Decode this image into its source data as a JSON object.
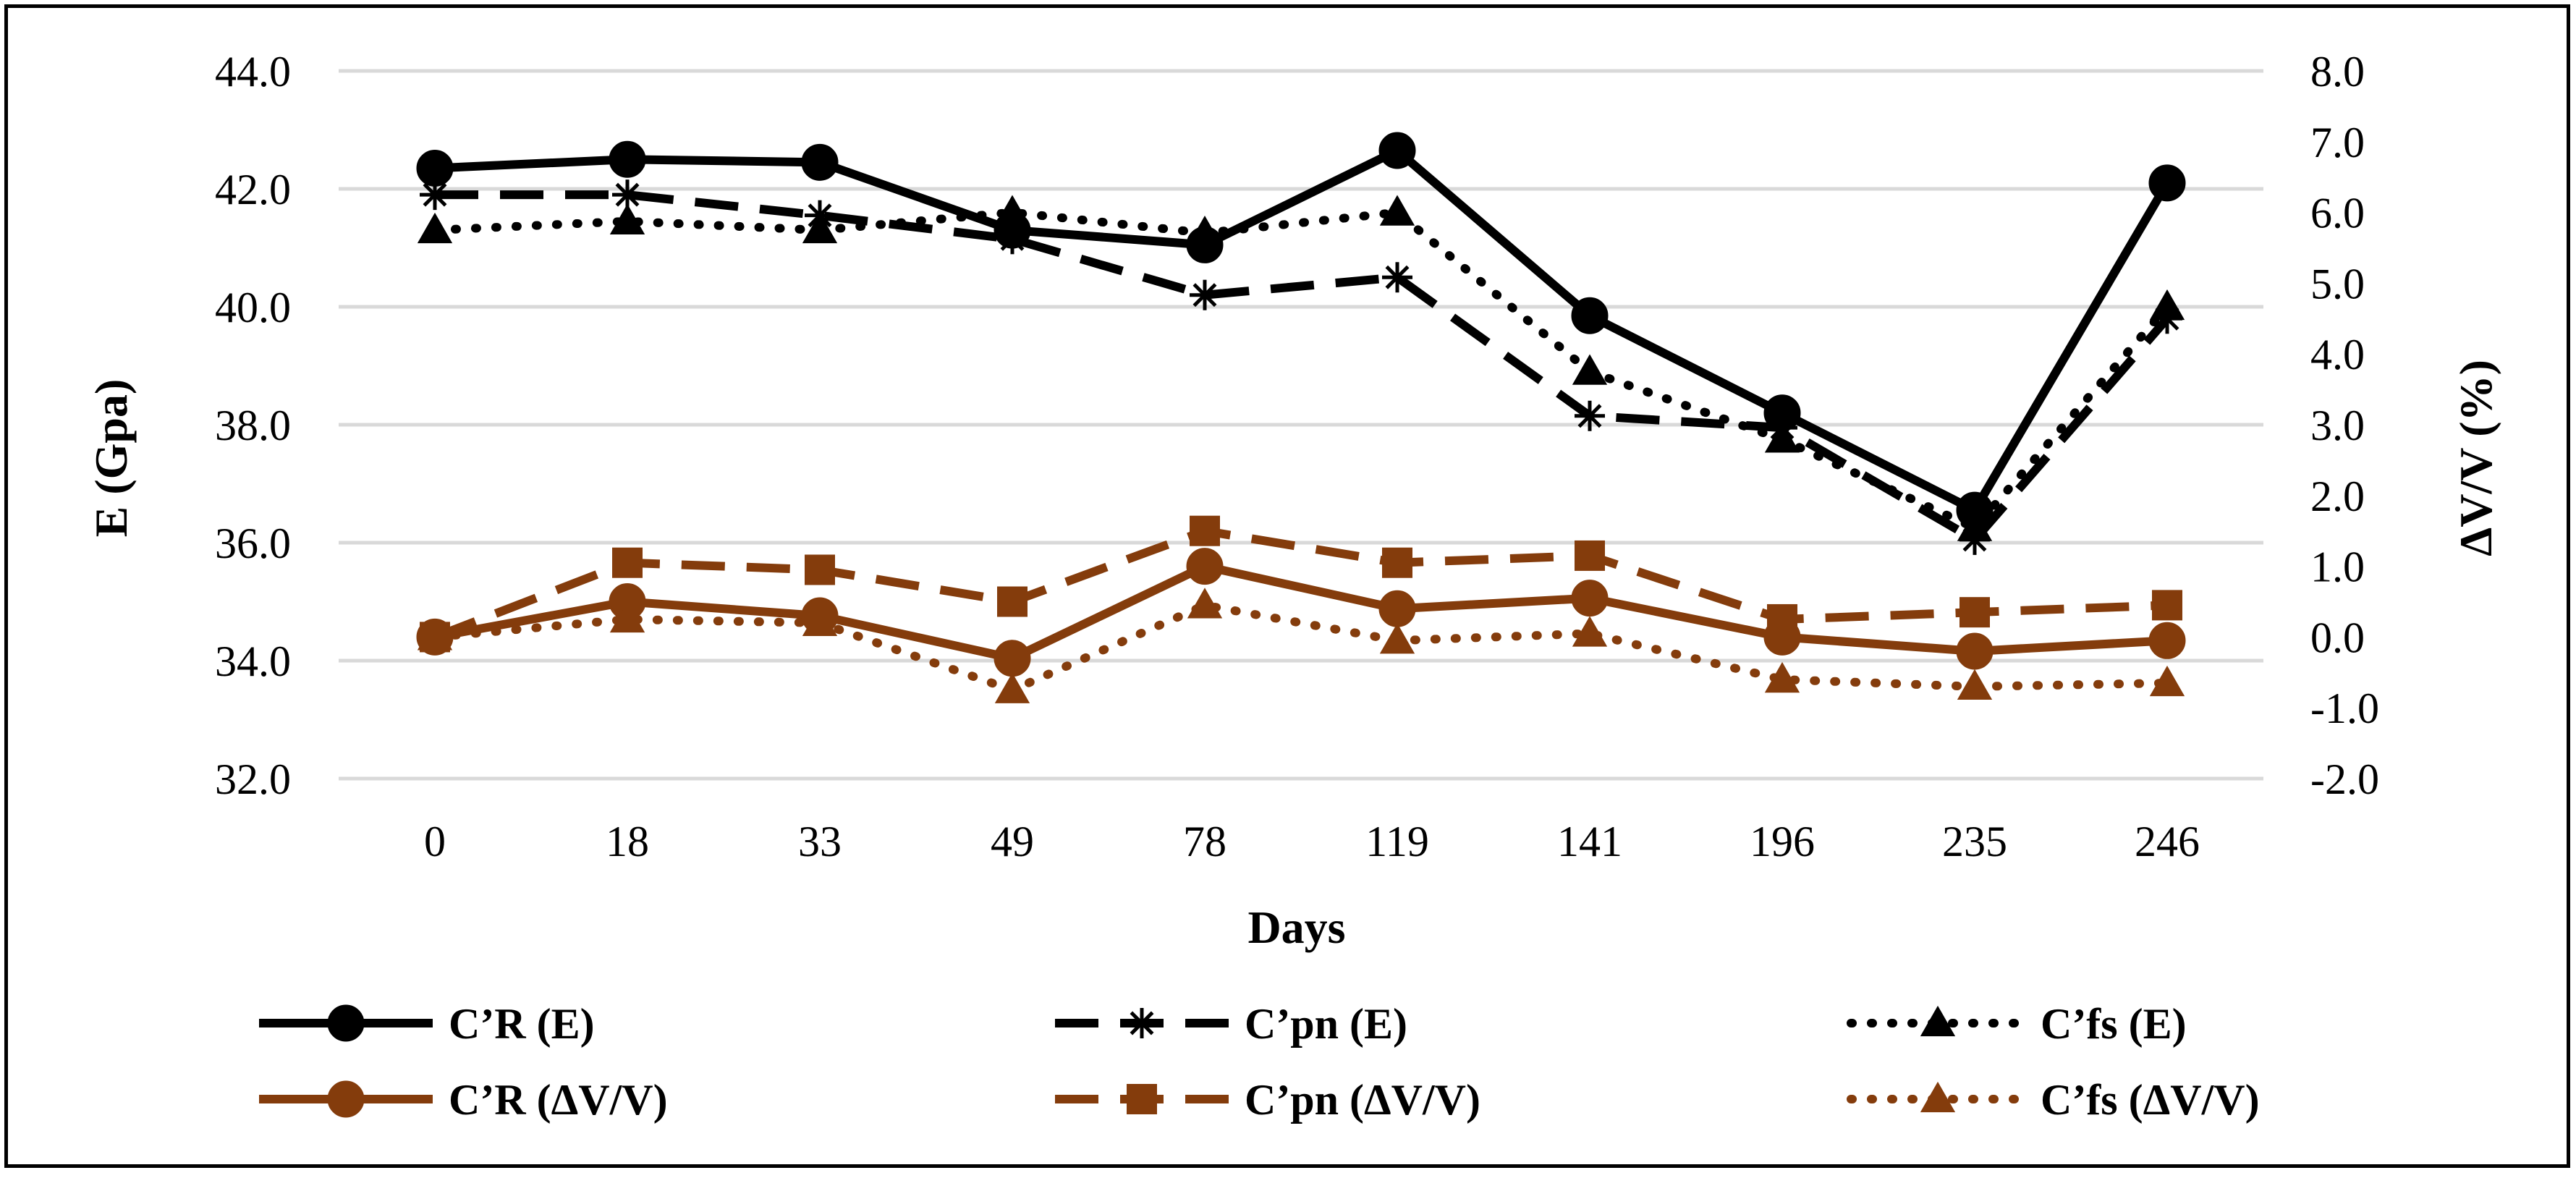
{
  "chart_data": {
    "type": "line",
    "categories": [
      "0",
      "18",
      "33",
      "49",
      "78",
      "119",
      "141",
      "196",
      "235",
      "246"
    ],
    "xlabel": "Days",
    "ylabel_left": "E (Gpa)",
    "ylabel_right": "ΔV/V (%)",
    "ylim_left": [
      32.0,
      44.0
    ],
    "ylim_right": [
      -2.0,
      8.0
    ],
    "yticks_left": [
      "32.0",
      "34.0",
      "36.0",
      "38.0",
      "40.0",
      "42.0",
      "44.0"
    ],
    "yticks_right": [
      "-2.0",
      "-1.0",
      "0.0",
      "1.0",
      "2.0",
      "3.0",
      "4.0",
      "5.0",
      "6.0",
      "7.0",
      "8.0"
    ],
    "grid": true,
    "legend_position": "bottom",
    "series": [
      {
        "name": "C’R (E)",
        "axis": "left",
        "color": "#000000",
        "dash": "solid",
        "marker": "circle",
        "values": [
          42.35,
          42.5,
          42.45,
          41.3,
          41.05,
          42.65,
          39.85,
          38.2,
          36.55,
          42.1
        ]
      },
      {
        "name": "C’pn (E)",
        "axis": "left",
        "color": "#000000",
        "dash": "dashed",
        "marker": "star",
        "values": [
          41.9,
          41.9,
          41.55,
          41.15,
          40.2,
          40.5,
          38.15,
          37.95,
          36.05,
          39.8
        ]
      },
      {
        "name": "C’fs (E)",
        "axis": "left",
        "color": "#000000",
        "dash": "dotted",
        "marker": "triangle",
        "values": [
          41.3,
          41.45,
          41.3,
          41.6,
          41.25,
          41.6,
          38.9,
          37.75,
          36.25,
          40.0
        ]
      },
      {
        "name": "C’R (ΔV/V)",
        "axis": "right",
        "color": "#843C0C",
        "dash": "solid",
        "marker": "circle",
        "values": [
          0.0,
          0.5,
          0.3,
          -0.3,
          1.0,
          0.4,
          0.55,
          0.0,
          -0.2,
          -0.05
        ]
      },
      {
        "name": "C’pn (ΔV/V)",
        "axis": "right",
        "color": "#843C0C",
        "dash": "dashed",
        "marker": "square",
        "values": [
          0.0,
          1.05,
          0.95,
          0.5,
          1.5,
          1.05,
          1.15,
          0.25,
          0.35,
          0.45
        ]
      },
      {
        "name": "C’fs (ΔV/V)",
        "axis": "right",
        "color": "#843C0C",
        "dash": "dotted",
        "marker": "triangle",
        "values": [
          0.0,
          0.25,
          0.2,
          -0.75,
          0.45,
          -0.05,
          0.05,
          -0.6,
          -0.7,
          -0.65
        ]
      }
    ]
  }
}
